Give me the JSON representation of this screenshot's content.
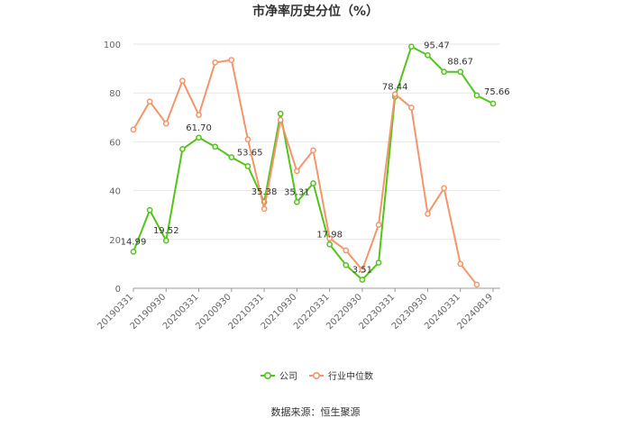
{
  "chart_data": {
    "type": "line",
    "title": "市净率历史分位（%）",
    "x": [
      "20190331",
      "20190630",
      "20190930",
      "20191231",
      "20200331",
      "20200630",
      "20200930",
      "20201231",
      "20210331",
      "20210630",
      "20210930",
      "20211231",
      "20220331",
      "20220630",
      "20220930",
      "20221231",
      "20230331",
      "20230630",
      "20230930",
      "20231231",
      "20240331",
      "20240630",
      "20240819"
    ],
    "x_tick_labels": [
      "20190331",
      "20190930",
      "20200331",
      "20200930",
      "20210331",
      "20210930",
      "20220331",
      "20220930",
      "20230331",
      "20230930",
      "20240331",
      "20240819"
    ],
    "ylim": [
      0,
      100
    ],
    "y_ticks": [
      0,
      20,
      40,
      60,
      80,
      100
    ],
    "grid": true,
    "legend_position": "bottom",
    "series": [
      {
        "name": "公司",
        "color": "#52c41a",
        "values": [
          14.99,
          32,
          19.52,
          57,
          61.7,
          58,
          53.65,
          50,
          35.38,
          71.5,
          35.31,
          43,
          17.98,
          9.5,
          3.51,
          10.5,
          78.44,
          99,
          95.47,
          88.67,
          88.67,
          79,
          75.66
        ]
      },
      {
        "name": "行业中位数",
        "color": "#f4956a",
        "values": [
          65,
          76.5,
          67.5,
          85,
          71,
          92.5,
          93.5,
          61,
          32.5,
          69,
          48,
          56.5,
          20.5,
          15.5,
          7.5,
          26,
          79.5,
          74,
          30.5,
          41,
          10,
          1.5,
          null
        ]
      }
    ],
    "annotations": [
      {
        "index": 0,
        "text": "14.99"
      },
      {
        "index": 2,
        "text": "19.52"
      },
      {
        "index": 4,
        "text": "61.70"
      },
      {
        "index": 6,
        "text": "53.65"
      },
      {
        "index": 8,
        "text": "35.38"
      },
      {
        "index": 10,
        "text": "35.31"
      },
      {
        "index": 12,
        "text": "17.98"
      },
      {
        "index": 14,
        "text": "3.51"
      },
      {
        "index": 16,
        "text": "78.44"
      },
      {
        "index": 18,
        "text": "95.47"
      },
      {
        "index": 20,
        "text": "88.67"
      },
      {
        "index": 22,
        "text": "75.66"
      }
    ]
  },
  "source": "数据来源：恒生聚源"
}
